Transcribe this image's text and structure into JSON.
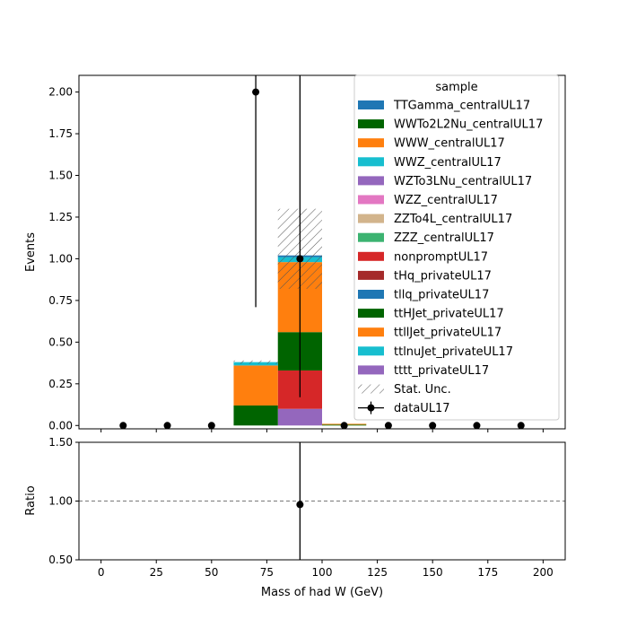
{
  "chart_data": [
    {
      "type": "bar",
      "stacked": true,
      "xlabel": "",
      "ylabel": "Events",
      "xlim": [
        -10,
        210
      ],
      "ylim": [
        -0.02,
        2.1
      ],
      "yticks": [
        "0.00",
        "0.25",
        "0.50",
        "0.75",
        "1.00",
        "1.25",
        "1.50",
        "1.75",
        "2.00"
      ],
      "bin_edges": [
        60,
        80,
        100,
        120
      ],
      "series": [
        {
          "name": "tttt_privateUL17",
          "color": "#9467bd",
          "values": [
            0.0,
            0.1,
            0.0
          ]
        },
        {
          "name": "nonpromptUL17",
          "color": "#d62728",
          "values": [
            0.0,
            0.23,
            0.0
          ]
        },
        {
          "name": "ttHJet_privateUL17",
          "color": "#006400",
          "values": [
            0.12,
            0.23,
            0.005
          ]
        },
        {
          "name": "ttllJet_privateUL17",
          "color": "#ff7f0e",
          "values": [
            0.24,
            0.42,
            0.005
          ]
        },
        {
          "name": "ttlnuJet_privateUL17",
          "color": "#17becf",
          "values": [
            0.02,
            0.03,
            0.0
          ]
        },
        {
          "name": "tllq_privateUL17",
          "color": "#1f77b4",
          "values": [
            0.0,
            0.01,
            0.0
          ]
        }
      ],
      "uncertainty_band": {
        "name": "Stat. Unc.",
        "low": [
          0.37,
          0.82,
          0.0
        ],
        "high": [
          0.39,
          1.3,
          0.0
        ]
      },
      "data": {
        "name": "dataUL17",
        "x": [
          10,
          30,
          50,
          70,
          90,
          110,
          130,
          150,
          170,
          190
        ],
        "y": [
          0,
          0,
          0,
          2,
          1,
          0,
          0,
          0,
          0,
          0
        ],
        "yerr_low": [
          0,
          0,
          0,
          1.29,
          0.83,
          0,
          0,
          0,
          0,
          0
        ],
        "yerr_high": [
          0,
          0,
          0,
          2.64,
          2.3,
          0,
          0,
          0,
          0,
          0
        ]
      },
      "legend": {
        "title": "sample",
        "placement": "top-right",
        "entries": [
          {
            "label": "TTGamma_centralUL17",
            "color": "#1f77b4"
          },
          {
            "label": "WWTo2L2Nu_centralUL17",
            "color": "#006400"
          },
          {
            "label": "WWW_centralUL17",
            "color": "#ff7f0e"
          },
          {
            "label": "WWZ_centralUL17",
            "color": "#17becf"
          },
          {
            "label": "WZTo3LNu_centralUL17",
            "color": "#9467bd"
          },
          {
            "label": "WZZ_centralUL17",
            "color": "#e377c2"
          },
          {
            "label": "ZZTo4L_centralUL17",
            "color": "#d2b48c"
          },
          {
            "label": "ZZZ_centralUL17",
            "color": "#3cb371"
          },
          {
            "label": "nonpromptUL17",
            "color": "#d62728"
          },
          {
            "label": "tHq_privateUL17",
            "color": "#a52a2a"
          },
          {
            "label": "tllq_privateUL17",
            "color": "#1f77b4"
          },
          {
            "label": "ttHJet_privateUL17",
            "color": "#006400"
          },
          {
            "label": "ttllJet_privateUL17",
            "color": "#ff7f0e"
          },
          {
            "label": "ttlnuJet_privateUL17",
            "color": "#17becf"
          },
          {
            "label": "tttt_privateUL17",
            "color": "#9467bd"
          },
          {
            "label": "Stat. Unc.",
            "color": "hatch"
          },
          {
            "label": "dataUL17",
            "color": "#000000"
          }
        ]
      }
    },
    {
      "type": "scatter",
      "xlabel": "Mass of had W (GeV)",
      "ylabel": "Ratio",
      "xlim": [
        -10,
        210
      ],
      "ylim": [
        0.5,
        1.5
      ],
      "xticks": [
        "0",
        "25",
        "50",
        "75",
        "100",
        "125",
        "150",
        "175",
        "200"
      ],
      "yticks": [
        "0.50",
        "1.00",
        "1.50"
      ],
      "reference_line": 1.0,
      "points": [
        {
          "x": 90,
          "y": 0.97,
          "yerr_low": 0.83,
          "yerr_high": 2.3
        }
      ]
    }
  ]
}
